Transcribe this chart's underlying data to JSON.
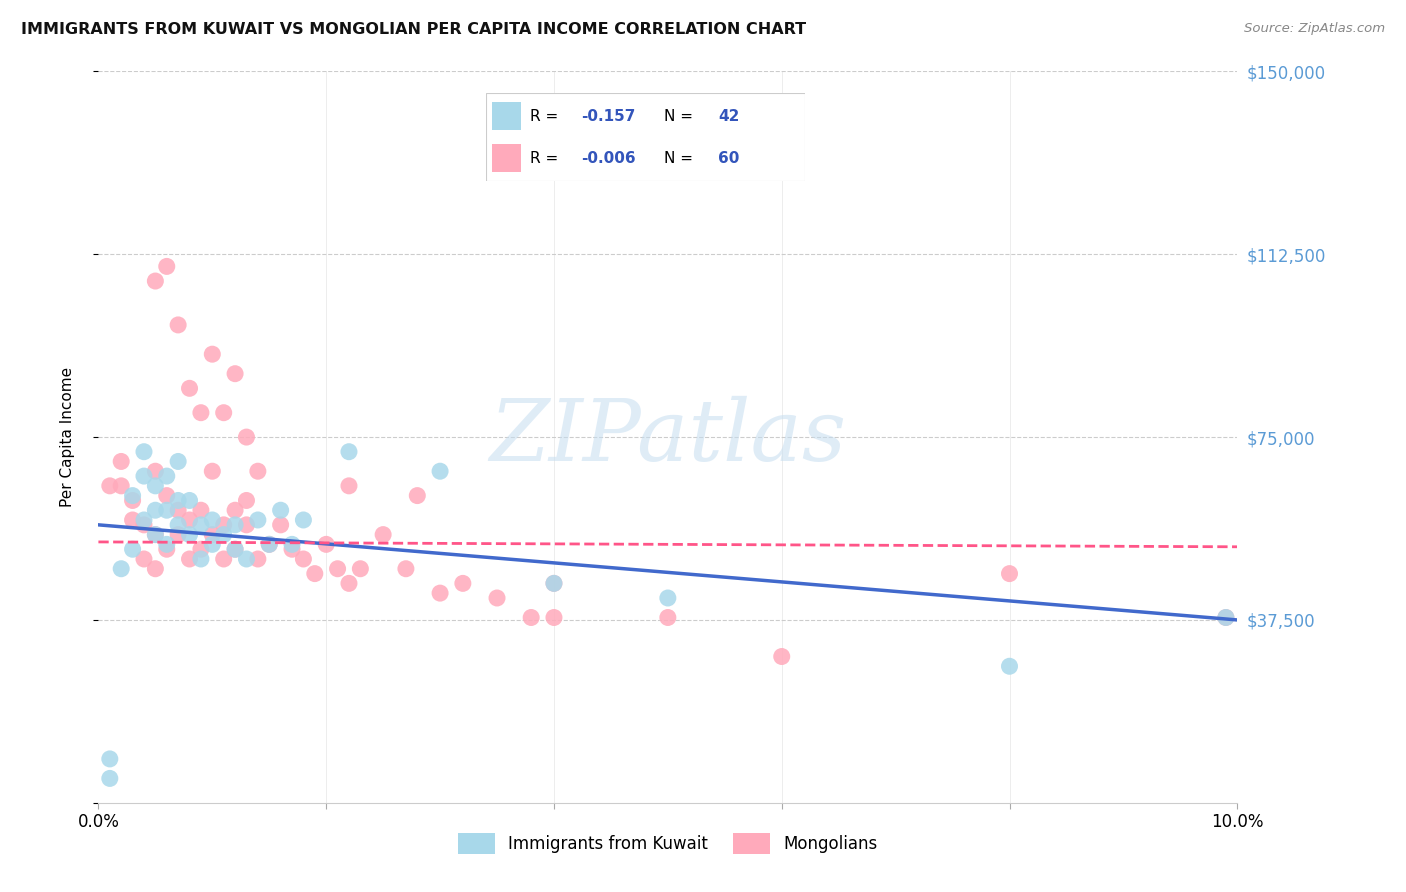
{
  "title": "IMMIGRANTS FROM KUWAIT VS MONGOLIAN PER CAPITA INCOME CORRELATION CHART",
  "source": "Source: ZipAtlas.com",
  "ylabel": "Per Capita Income",
  "xlim": [
    0,
    0.1
  ],
  "ylim": [
    0,
    150000
  ],
  "yticks": [
    0,
    37500,
    75000,
    112500,
    150000
  ],
  "ytick_labels": [
    "",
    "$37,500",
    "$75,000",
    "$112,500",
    "$150,000"
  ],
  "xtick_positions": [
    0.0,
    0.02,
    0.04,
    0.06,
    0.08,
    0.1
  ],
  "blue_color": "#A8D8EA",
  "pink_color": "#FFAABB",
  "blue_line_color": "#4169CC",
  "pink_line_color": "#FF5588",
  "axis_tick_color": "#5B9BD5",
  "legend_text_color": "#3355BB",
  "legend_label1": "Immigrants from Kuwait",
  "legend_label2": "Mongolians",
  "watermark": "ZIPatlas",
  "blue_trend_x": [
    0.0,
    0.1
  ],
  "blue_trend_y": [
    57000,
    37500
  ],
  "pink_trend_x": [
    0.0,
    0.1
  ],
  "pink_trend_y": [
    53500,
    52500
  ],
  "blue_x": [
    0.001,
    0.001,
    0.002,
    0.003,
    0.003,
    0.004,
    0.004,
    0.004,
    0.005,
    0.005,
    0.005,
    0.006,
    0.006,
    0.006,
    0.007,
    0.007,
    0.007,
    0.008,
    0.008,
    0.009,
    0.009,
    0.01,
    0.01,
    0.011,
    0.012,
    0.012,
    0.013,
    0.014,
    0.015,
    0.016,
    0.017,
    0.018,
    0.022,
    0.03,
    0.04,
    0.05,
    0.08,
    0.099
  ],
  "blue_y": [
    5000,
    9000,
    48000,
    52000,
    63000,
    58000,
    67000,
    72000,
    55000,
    60000,
    65000,
    53000,
    60000,
    67000,
    57000,
    62000,
    70000,
    55000,
    62000,
    50000,
    57000,
    53000,
    58000,
    55000,
    52000,
    57000,
    50000,
    58000,
    53000,
    60000,
    53000,
    58000,
    72000,
    68000,
    45000,
    42000,
    28000,
    38000
  ],
  "pink_x": [
    0.001,
    0.002,
    0.002,
    0.003,
    0.003,
    0.004,
    0.004,
    0.005,
    0.005,
    0.005,
    0.006,
    0.006,
    0.007,
    0.007,
    0.008,
    0.008,
    0.009,
    0.009,
    0.01,
    0.01,
    0.011,
    0.011,
    0.012,
    0.012,
    0.013,
    0.013,
    0.014,
    0.015,
    0.016,
    0.017,
    0.018,
    0.019,
    0.02,
    0.021,
    0.022,
    0.023,
    0.025,
    0.027,
    0.03,
    0.032,
    0.035,
    0.038,
    0.04,
    0.05,
    0.06,
    0.005,
    0.006,
    0.007,
    0.008,
    0.009,
    0.01,
    0.011,
    0.012,
    0.013,
    0.014,
    0.022,
    0.028,
    0.04,
    0.08,
    0.099
  ],
  "pink_y": [
    65000,
    65000,
    70000,
    58000,
    62000,
    50000,
    57000,
    48000,
    55000,
    68000,
    52000,
    63000,
    55000,
    60000,
    50000,
    58000,
    52000,
    60000,
    55000,
    68000,
    50000,
    57000,
    60000,
    52000,
    57000,
    62000,
    50000,
    53000,
    57000,
    52000,
    50000,
    47000,
    53000,
    48000,
    45000,
    48000,
    55000,
    48000,
    43000,
    45000,
    42000,
    38000,
    45000,
    38000,
    30000,
    107000,
    110000,
    98000,
    85000,
    80000,
    92000,
    80000,
    88000,
    75000,
    68000,
    65000,
    63000,
    38000,
    47000,
    38000
  ]
}
